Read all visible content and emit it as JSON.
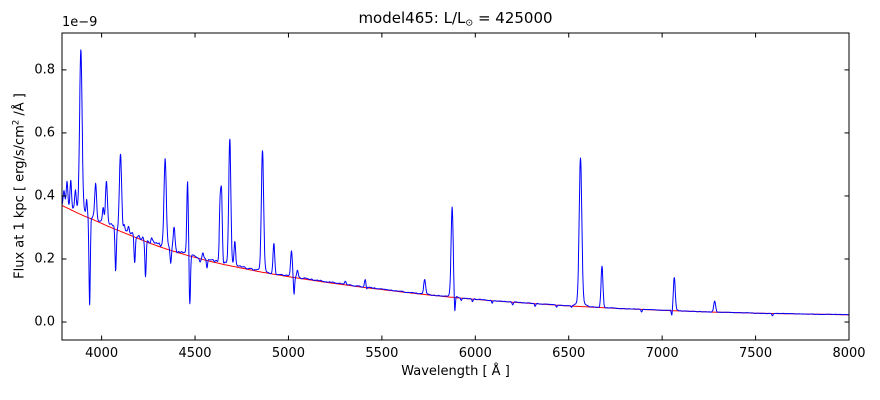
{
  "figure": {
    "background": "#ffffff"
  },
  "chart_data": {
    "type": "line",
    "title": "model465: L/L⊙ = 425000",
    "title_parts": {
      "prefix": "model465: L/L",
      "sun": "⊙",
      "suffix": " = 425000"
    },
    "xlabel": "Wavelength [ Å ]",
    "ylabel_parts": {
      "prefix": "Flux at 1 kpc [ erg/s/cm",
      "sup": "2",
      "suffix": " /Å ]"
    },
    "y_offset_text": "1e−9",
    "flux_unit_note": "y values below are in units of 1e-9 erg/s/cm^2/Å as shown by the axis offset",
    "x_ticks": [
      4000,
      4500,
      5000,
      5500,
      6000,
      6500,
      7000,
      7500,
      8000
    ],
    "x_tick_labels": [
      "4000",
      "4500",
      "5000",
      "5500",
      "6000",
      "6500",
      "7000",
      "7500",
      "8000"
    ],
    "y_tick_values": [
      0.0,
      0.2,
      0.4,
      0.6,
      0.8
    ],
    "y_tick_labels": [
      "0.0",
      "0.2",
      "0.4",
      "0.6",
      "0.8"
    ],
    "xlim": [
      3788,
      8000
    ],
    "ylim": [
      -0.057,
      0.917
    ],
    "grid": false,
    "legend": null,
    "series": [
      {
        "name": "spectrum",
        "color": "#0000ff"
      },
      {
        "name": "continuum",
        "color": "#ff0000"
      }
    ],
    "continuum_points": [
      [
        3780,
        0.372
      ],
      [
        3850,
        0.352
      ],
      [
        3900,
        0.338
      ],
      [
        3950,
        0.326
      ],
      [
        4000,
        0.313
      ],
      [
        4050,
        0.3
      ],
      [
        4100,
        0.288
      ],
      [
        4150,
        0.276
      ],
      [
        4200,
        0.264
      ],
      [
        4250,
        0.252
      ],
      [
        4300,
        0.241
      ],
      [
        4350,
        0.231
      ],
      [
        4400,
        0.222
      ],
      [
        4450,
        0.213
      ],
      [
        4500,
        0.205
      ],
      [
        4550,
        0.197
      ],
      [
        4600,
        0.19
      ],
      [
        4650,
        0.183
      ],
      [
        4700,
        0.177
      ],
      [
        4750,
        0.171
      ],
      [
        4800,
        0.165
      ],
      [
        4850,
        0.159
      ],
      [
        4900,
        0.154
      ],
      [
        4950,
        0.149
      ],
      [
        5000,
        0.144
      ],
      [
        5100,
        0.135
      ],
      [
        5200,
        0.126
      ],
      [
        5300,
        0.118
      ],
      [
        5400,
        0.11
      ],
      [
        5500,
        0.103
      ],
      [
        5600,
        0.096
      ],
      [
        5700,
        0.089
      ],
      [
        5800,
        0.083
      ],
      [
        5900,
        0.077
      ],
      [
        6000,
        0.072
      ],
      [
        6100,
        0.067
      ],
      [
        6200,
        0.063
      ],
      [
        6300,
        0.059
      ],
      [
        6400,
        0.055
      ],
      [
        6500,
        0.051
      ],
      [
        6600,
        0.048
      ],
      [
        6700,
        0.045
      ],
      [
        6800,
        0.042
      ],
      [
        6900,
        0.04
      ],
      [
        7000,
        0.037
      ],
      [
        7100,
        0.035
      ],
      [
        7200,
        0.033
      ],
      [
        7300,
        0.031
      ],
      [
        7400,
        0.03
      ],
      [
        7500,
        0.028
      ],
      [
        7600,
        0.027
      ],
      [
        7700,
        0.026
      ],
      [
        7800,
        0.025
      ],
      [
        7900,
        0.024
      ],
      [
        8000,
        0.023
      ]
    ],
    "emission_lines": [
      {
        "wl": 3798,
        "peak": 0.42,
        "sigma": 4
      },
      {
        "wl": 3815,
        "peak": 0.445,
        "sigma": 4
      },
      {
        "wl": 3835,
        "peak": 0.45,
        "sigma": 4
      },
      {
        "wl": 3860,
        "peak": 0.41,
        "sigma": 4
      },
      {
        "wl": 3889,
        "peak": 0.845,
        "sigma": 6.5
      },
      {
        "wl": 3889,
        "amp": 0.018,
        "sigma": 20
      },
      {
        "wl": 3920,
        "peak": 0.385,
        "sigma": 3
      },
      {
        "wl": 3968,
        "peak": 0.445,
        "sigma": 5
      },
      {
        "wl": 4009,
        "peak": 0.365,
        "sigma": 4
      },
      {
        "wl": 4026,
        "peak": 0.445,
        "sigma": 5
      },
      {
        "wl": 4101,
        "peak": 0.535,
        "sigma": 6
      },
      {
        "wl": 4121,
        "peak": 0.315,
        "sigma": 4
      },
      {
        "wl": 4144,
        "peak": 0.305,
        "sigma": 4
      },
      {
        "wl": 4200,
        "peak": 0.278,
        "sigma": 4
      },
      {
        "wl": 4267,
        "peak": 0.265,
        "sigma": 4
      },
      {
        "wl": 4340,
        "peak": 0.505,
        "sigma": 6
      },
      {
        "wl": 4340,
        "amp": 0.008,
        "sigma": 16
      },
      {
        "wl": 4388,
        "peak": 0.3,
        "sigma": 4.5
      },
      {
        "wl": 4460,
        "peak": 0.445,
        "sigma": 4
      },
      {
        "wl": 4542,
        "peak": 0.215,
        "sigma": 3.5
      },
      {
        "wl": 4634,
        "peak": 0.37,
        "sigma": 4
      },
      {
        "wl": 4642,
        "peak": 0.395,
        "sigma": 4
      },
      {
        "wl": 4686,
        "peak": 0.575,
        "sigma": 5.5
      },
      {
        "wl": 4686,
        "amp": 0.009,
        "sigma": 14
      },
      {
        "wl": 4713,
        "peak": 0.252,
        "sigma": 4
      },
      {
        "wl": 4861,
        "peak": 0.535,
        "sigma": 6
      },
      {
        "wl": 4861,
        "amp": 0.01,
        "sigma": 18
      },
      {
        "wl": 4922,
        "peak": 0.246,
        "sigma": 4.5
      },
      {
        "wl": 5016,
        "peak": 0.225,
        "sigma": 4.5
      },
      {
        "wl": 5048,
        "peak": 0.165,
        "sigma": 4
      },
      {
        "wl": 5304,
        "peak": 0.13,
        "sigma": 4
      },
      {
        "wl": 5411,
        "peak": 0.135,
        "sigma": 4.5
      },
      {
        "wl": 5729,
        "peak": 0.135,
        "sigma": 5
      },
      {
        "wl": 5876,
        "peak": 0.357,
        "sigma": 5.5
      },
      {
        "wl": 5876,
        "amp": 0.009,
        "sigma": 15
      },
      {
        "wl": 6563,
        "peak": 0.506,
        "sigma": 7
      },
      {
        "wl": 6563,
        "amp": 0.014,
        "sigma": 22
      },
      {
        "wl": 6678,
        "peak": 0.178,
        "sigma": 5
      },
      {
        "wl": 7065,
        "peak": 0.137,
        "sigma": 5
      },
      {
        "wl": 7065,
        "amp": 0.005,
        "sigma": 12
      },
      {
        "wl": 7281,
        "peak": 0.066,
        "sigma": 5
      }
    ],
    "absorption_lines": [
      {
        "wl": 3936,
        "min": 0.048,
        "sigma": 3.5
      },
      {
        "wl": 4075,
        "min": 0.156,
        "sigma": 3.5
      },
      {
        "wl": 4177,
        "min": 0.185,
        "sigma": 3.5
      },
      {
        "wl": 4235,
        "min": 0.148,
        "sigma": 3.5
      },
      {
        "wl": 4370,
        "min": 0.18,
        "sigma": 3.5
      },
      {
        "wl": 4472,
        "min": 0.054,
        "sigma": 3.5
      },
      {
        "wl": 4527,
        "min": 0.196,
        "sigma": 3
      },
      {
        "wl": 4564,
        "min": 0.176,
        "sigma": 3
      },
      {
        "wl": 5030,
        "min": 0.088,
        "sigma": 3
      },
      {
        "wl": 5418,
        "min": 0.098,
        "sigma": 3
      },
      {
        "wl": 5890,
        "min": 0.021,
        "sigma": 3
      },
      {
        "wl": 7052,
        "min": 0.016,
        "sigma": 3
      }
    ],
    "micro_absorption_dips": [
      {
        "wl": 5925,
        "depth": 0.008,
        "sigma": 3
      },
      {
        "wl": 5985,
        "depth": 0.009,
        "sigma": 3
      },
      {
        "wl": 6090,
        "depth": 0.009,
        "sigma": 3
      },
      {
        "wl": 6200,
        "depth": 0.008,
        "sigma": 3
      },
      {
        "wl": 6320,
        "depth": 0.008,
        "sigma": 3
      },
      {
        "wl": 6435,
        "depth": 0.007,
        "sigma": 3
      },
      {
        "wl": 6515,
        "depth": 0.006,
        "sigma": 3
      },
      {
        "wl": 6890,
        "depth": 0.008,
        "sigma": 3
      },
      {
        "wl": 7590,
        "depth": 0.007,
        "sigma": 3
      }
    ],
    "render_hints": {
      "noise_seed": 7,
      "noise_amp": 0.0065,
      "noise_decay_start_wl": 4300,
      "noise_decay_scale": 650,
      "noise_floor": 0.0008,
      "noise_step_wl": 8,
      "veiling_amp": 0.008,
      "veiling_scale": 900
    }
  }
}
